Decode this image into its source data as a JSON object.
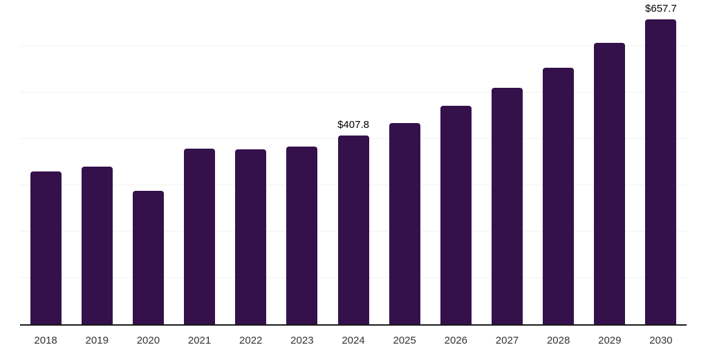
{
  "chart_data": {
    "type": "bar",
    "title": "",
    "xlabel": "",
    "ylabel": "",
    "categories": [
      "2018",
      "2019",
      "2020",
      "2021",
      "2022",
      "2023",
      "2024",
      "2025",
      "2026",
      "2027",
      "2028",
      "2029",
      "2030"
    ],
    "values": [
      330,
      341,
      288,
      379,
      378,
      383,
      407.8,
      435,
      471,
      510,
      554,
      607,
      657.7
    ],
    "data_labels": {
      "2024": "$407.8",
      "2030": "$657.7"
    },
    "ylim": [
      0,
      700
    ],
    "ytick_interval": 100,
    "gridline_values": [
      100,
      200,
      300,
      400,
      500,
      600,
      700
    ],
    "grid": "horizontal-only",
    "y_axis_labels_visible": false,
    "legend": "none",
    "bar_color": "#34114B",
    "gridline_color": "#f2f2f2",
    "axis_line_color": "#1a1a1a",
    "x_tick_label_color": "#333333",
    "value_label_color": "#000000"
  }
}
